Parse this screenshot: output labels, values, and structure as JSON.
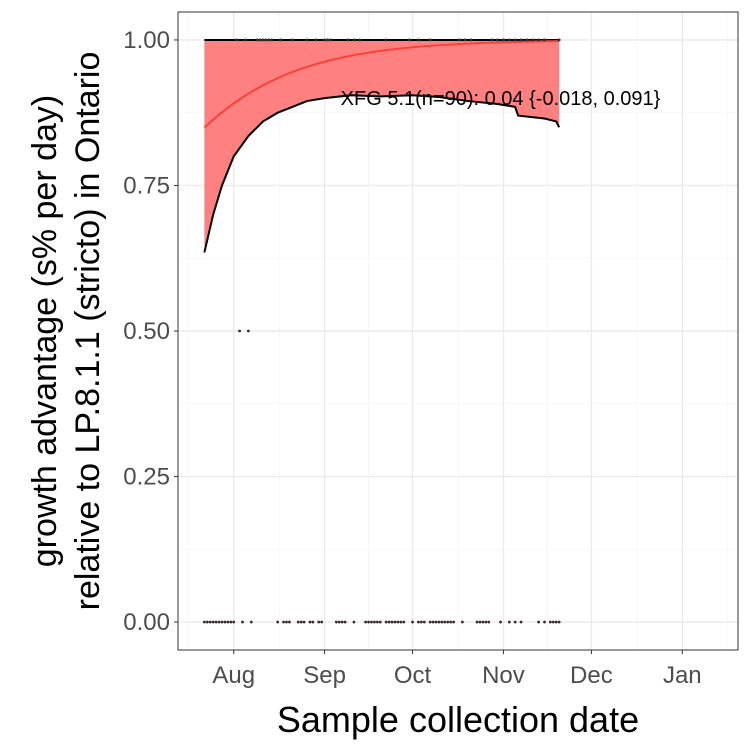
{
  "chart_data": {
    "type": "scatter",
    "xlabel": "Sample collection date",
    "ylabel_lines": [
      "growth advantage (s% per day)",
      "relative to LP.8.1.1 (stricto) in Ontario"
    ],
    "xlim": [
      "2025-07-13",
      "2026-01-20"
    ],
    "ylim": [
      -0.048,
      1.048
    ],
    "x_ticks": [
      {
        "date": "2025-08-01",
        "label": "Aug"
      },
      {
        "date": "2025-09-01",
        "label": "Sep"
      },
      {
        "date": "2025-10-01",
        "label": "Oct"
      },
      {
        "date": "2025-11-01",
        "label": "Nov"
      },
      {
        "date": "2025-12-01",
        "label": "Dec"
      },
      {
        "date": "2026-01-01",
        "label": "Jan"
      }
    ],
    "y_ticks": [
      {
        "value": 0,
        "label": "0.00"
      },
      {
        "value": 0.25,
        "label": "0.25"
      },
      {
        "value": 0.5,
        "label": "0.50"
      },
      {
        "value": 0.75,
        "label": "0.75"
      },
      {
        "value": 1,
        "label": "1.00"
      }
    ],
    "grid": true,
    "colors": {
      "ribbon": "#ff8080",
      "fit": "#f8433a",
      "points": "#3a2a2a",
      "bound": "#000000"
    },
    "annotation": {
      "text": "XFG 5.1(n=90): 0.04 {-0.018, 0.091}",
      "date": "2025-10-31",
      "value": 0.9
    },
    "fit": {
      "start": "2025-07-22",
      "end": "2025-11-20",
      "intercept_logit": 1.73,
      "slope_per_day": 0.037
    },
    "ribbon_upper": 1.0,
    "ribbon_lower": [
      [
        "2025-07-22",
        0.635
      ],
      [
        "2025-07-25",
        0.7
      ],
      [
        "2025-07-28",
        0.75
      ],
      [
        "2025-08-01",
        0.8
      ],
      [
        "2025-08-06",
        0.835
      ],
      [
        "2025-08-11",
        0.86
      ],
      [
        "2025-08-16",
        0.875
      ],
      [
        "2025-08-21",
        0.885
      ],
      [
        "2025-08-26",
        0.895
      ],
      [
        "2025-09-01",
        0.9
      ],
      [
        "2025-09-10",
        0.905
      ],
      [
        "2025-09-20",
        0.903
      ],
      [
        "2025-10-01",
        0.905
      ],
      [
        "2025-10-10",
        0.902
      ],
      [
        "2025-10-20",
        0.895
      ],
      [
        "2025-10-30",
        0.89
      ],
      [
        "2025-11-05",
        0.885
      ],
      [
        "2025-11-06",
        0.87
      ],
      [
        "2025-11-15",
        0.865
      ],
      [
        "2025-11-19",
        0.86
      ],
      [
        "2025-11-20",
        0.85
      ]
    ],
    "points": [
      [
        "2025-07-22",
        0
      ],
      [
        "2025-07-23",
        0
      ],
      [
        "2025-07-24",
        0
      ],
      [
        "2025-07-25",
        0
      ],
      [
        "2025-07-26",
        0
      ],
      [
        "2025-07-27",
        0
      ],
      [
        "2025-07-28",
        0
      ],
      [
        "2025-07-29",
        0
      ],
      [
        "2025-07-30",
        0
      ],
      [
        "2025-07-31",
        0
      ],
      [
        "2025-08-01",
        0
      ],
      [
        "2025-08-04",
        0
      ],
      [
        "2025-08-07",
        0
      ],
      [
        "2025-08-16",
        0
      ],
      [
        "2025-08-18",
        0
      ],
      [
        "2025-08-19",
        0
      ],
      [
        "2025-08-20",
        0
      ],
      [
        "2025-08-23",
        0
      ],
      [
        "2025-08-24",
        0
      ],
      [
        "2025-08-25",
        0
      ],
      [
        "2025-08-27",
        0
      ],
      [
        "2025-08-28",
        0
      ],
      [
        "2025-08-30",
        0
      ],
      [
        "2025-08-31",
        0
      ],
      [
        "2025-09-05",
        0
      ],
      [
        "2025-09-06",
        0
      ],
      [
        "2025-09-07",
        0
      ],
      [
        "2025-09-08",
        0
      ],
      [
        "2025-09-11",
        0
      ],
      [
        "2025-09-15",
        0
      ],
      [
        "2025-09-16",
        0
      ],
      [
        "2025-09-17",
        0
      ],
      [
        "2025-09-18",
        0
      ],
      [
        "2025-09-19",
        0
      ],
      [
        "2025-09-20",
        0
      ],
      [
        "2025-09-22",
        0
      ],
      [
        "2025-09-23",
        0
      ],
      [
        "2025-09-24",
        0
      ],
      [
        "2025-09-25",
        0
      ],
      [
        "2025-09-26",
        0
      ],
      [
        "2025-09-27",
        0
      ],
      [
        "2025-09-28",
        0
      ],
      [
        "2025-10-01",
        0
      ],
      [
        "2025-10-03",
        0
      ],
      [
        "2025-10-04",
        0
      ],
      [
        "2025-10-05",
        0
      ],
      [
        "2025-10-07",
        0
      ],
      [
        "2025-10-08",
        0
      ],
      [
        "2025-10-09",
        0
      ],
      [
        "2025-10-10",
        0
      ],
      [
        "2025-10-11",
        0
      ],
      [
        "2025-10-12",
        0
      ],
      [
        "2025-10-13",
        0
      ],
      [
        "2025-10-14",
        0
      ],
      [
        "2025-10-15",
        0
      ],
      [
        "2025-10-18",
        0
      ],
      [
        "2025-10-23",
        0
      ],
      [
        "2025-10-24",
        0
      ],
      [
        "2025-10-25",
        0
      ],
      [
        "2025-10-26",
        0
      ],
      [
        "2025-10-27",
        0
      ],
      [
        "2025-10-31",
        0
      ],
      [
        "2025-11-03",
        0
      ],
      [
        "2025-11-05",
        0
      ],
      [
        "2025-11-07",
        0
      ],
      [
        "2025-11-13",
        0
      ],
      [
        "2025-11-15",
        0
      ],
      [
        "2025-11-17",
        0
      ],
      [
        "2025-11-18",
        0
      ],
      [
        "2025-11-19",
        0
      ],
      [
        "2025-11-20",
        0
      ],
      [
        "2025-08-03",
        0.5
      ],
      [
        "2025-08-06",
        0.5
      ],
      [
        "2025-08-02",
        1
      ],
      [
        "2025-08-05",
        1
      ],
      [
        "2025-08-09",
        1
      ],
      [
        "2025-08-10",
        1
      ],
      [
        "2025-08-11",
        1
      ],
      [
        "2025-08-12",
        1
      ],
      [
        "2025-08-13",
        1
      ],
      [
        "2025-08-14",
        1
      ],
      [
        "2025-08-17",
        1
      ],
      [
        "2025-08-21",
        1
      ],
      [
        "2025-08-26",
        1
      ],
      [
        "2025-08-29",
        1
      ],
      [
        "2025-09-01",
        1
      ],
      [
        "2025-09-02",
        1
      ],
      [
        "2025-09-03",
        1
      ],
      [
        "2025-09-09",
        1
      ],
      [
        "2025-09-11",
        1
      ],
      [
        "2025-09-13",
        1
      ],
      [
        "2025-09-22",
        1
      ],
      [
        "2025-09-30",
        1
      ],
      [
        "2025-10-03",
        1
      ],
      [
        "2025-10-07",
        1
      ],
      [
        "2025-10-17",
        1
      ],
      [
        "2025-10-19",
        1
      ],
      [
        "2025-10-21",
        1
      ],
      [
        "2025-10-28",
        1
      ],
      [
        "2025-10-30",
        1
      ],
      [
        "2025-11-01",
        1
      ],
      [
        "2025-11-03",
        1
      ],
      [
        "2025-11-05",
        1
      ],
      [
        "2025-11-07",
        1
      ],
      [
        "2025-11-09",
        1
      ],
      [
        "2025-11-11",
        1
      ],
      [
        "2025-11-13",
        1
      ],
      [
        "2025-11-15",
        1
      ],
      [
        "2025-11-20",
        1
      ]
    ]
  }
}
